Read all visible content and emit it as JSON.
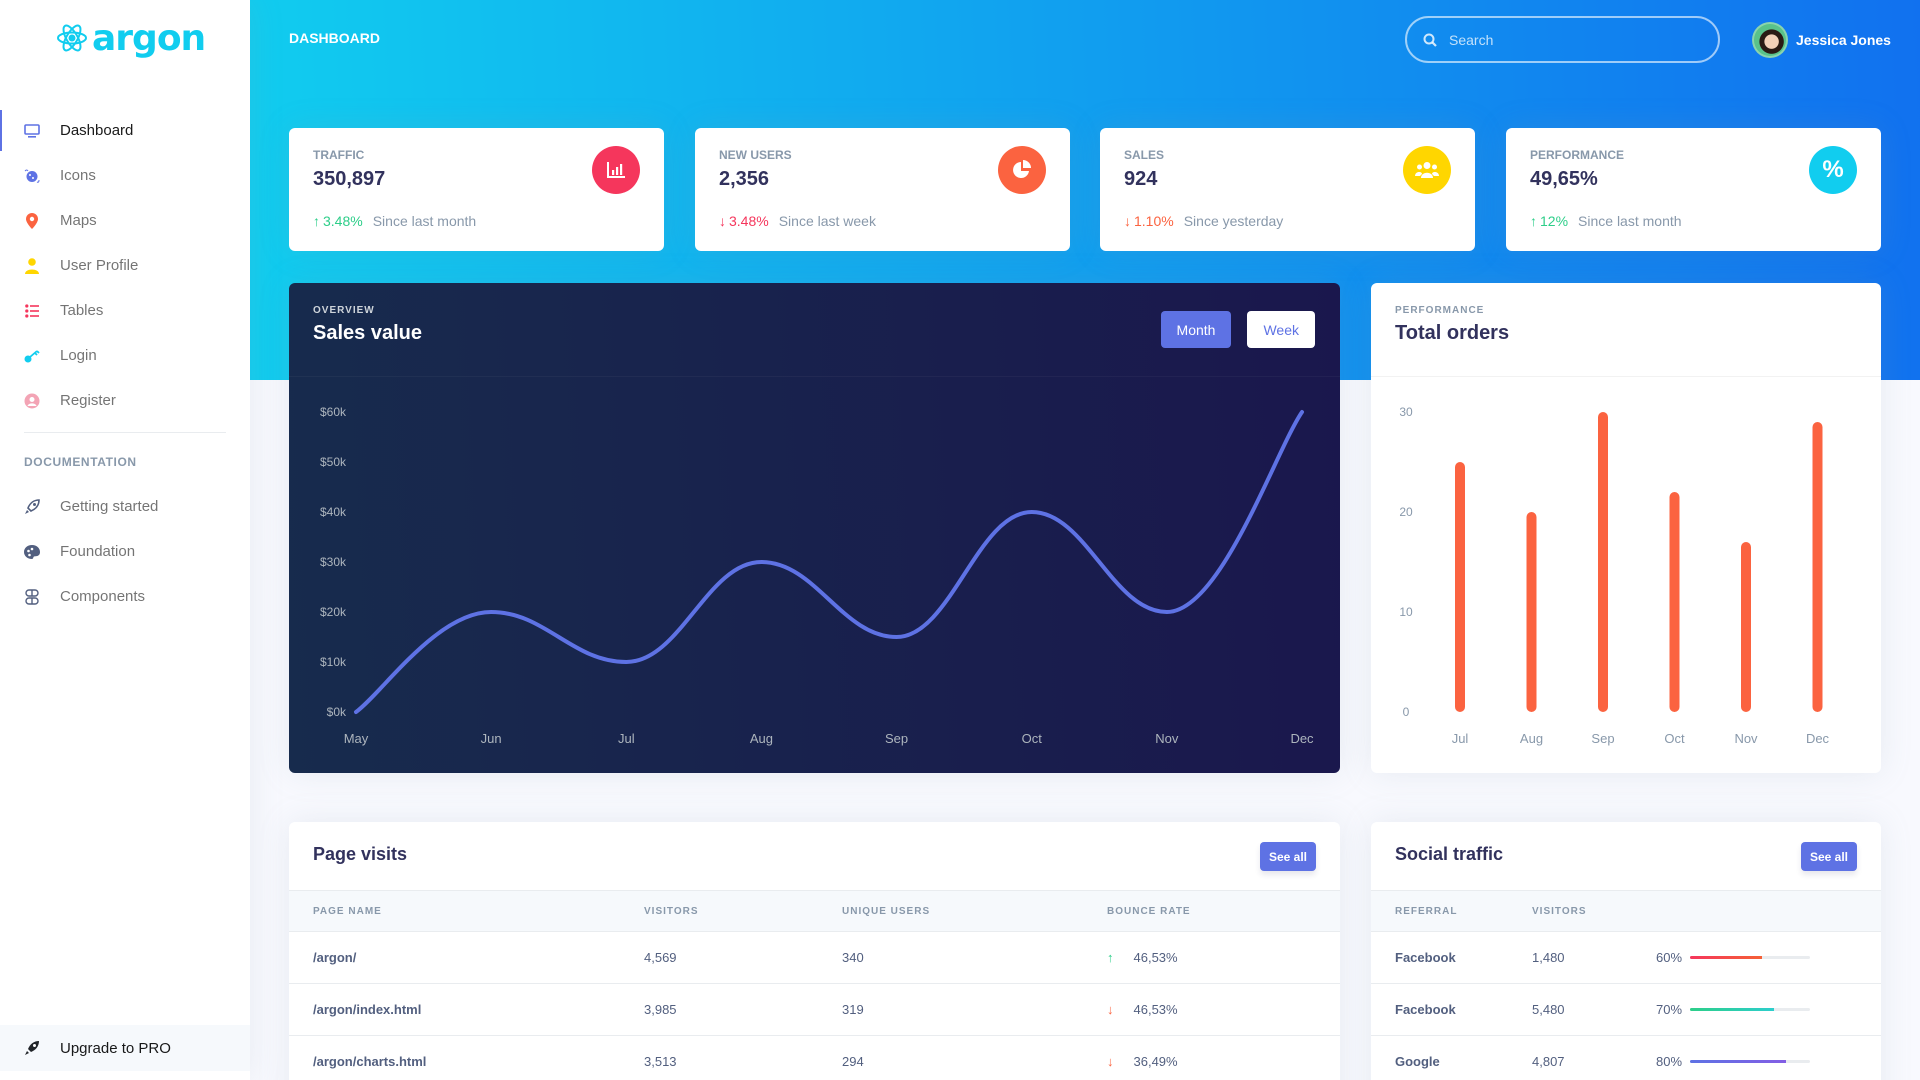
{
  "brand": {
    "name": "argon",
    "color": "#11cdef"
  },
  "sidebar": {
    "items": [
      {
        "label": "Dashboard",
        "icon": "tv-icon",
        "color": "#5e72e4",
        "active": true
      },
      {
        "label": "Icons",
        "icon": "planet-icon",
        "color": "#5e72e4"
      },
      {
        "label": "Maps",
        "icon": "pin-icon",
        "color": "#fb6340"
      },
      {
        "label": "User Profile",
        "icon": "user-icon",
        "color": "#ffd600"
      },
      {
        "label": "Tables",
        "icon": "list-icon",
        "color": "#f5365c"
      },
      {
        "label": "Login",
        "icon": "key-icon",
        "color": "#11cdef"
      },
      {
        "label": "Register",
        "icon": "circle-user-icon",
        "color": "#f3a4b5"
      }
    ],
    "doc_heading": "Documentation",
    "doc_items": [
      {
        "label": "Getting started",
        "icon": "rocket-icon"
      },
      {
        "label": "Foundation",
        "icon": "palette-icon"
      },
      {
        "label": "Components",
        "icon": "components-icon"
      }
    ],
    "upgrade_label": "Upgrade to PRO"
  },
  "header": {
    "title": "Dashboard",
    "search_placeholder": "Search",
    "user_name": "Jessica Jones"
  },
  "stats": [
    {
      "label": "Traffic",
      "value": "350,897",
      "change": "3.48%",
      "direction": "up",
      "since": "Since last month",
      "icon": "chart-bar-icon",
      "icon_bg": "#f5365c",
      "change_color": "#2dce89"
    },
    {
      "label": "New users",
      "value": "2,356",
      "change": "3.48%",
      "direction": "down",
      "since": "Since last week",
      "icon": "chart-pie-icon",
      "icon_bg": "#fb6340",
      "change_color": "#f5365c"
    },
    {
      "label": "Sales",
      "value": "924",
      "change": "1.10%",
      "direction": "down",
      "since": "Since yesterday",
      "icon": "users-icon",
      "icon_bg": "#ffd600",
      "change_color": "#fb6340"
    },
    {
      "label": "Performance",
      "value": "49,65%",
      "change": "12%",
      "direction": "up",
      "since": "Since last month",
      "icon": "percent-icon",
      "icon_bg": "#11cdef",
      "change_color": "#2dce89"
    }
  ],
  "sales_card": {
    "overline": "Overview",
    "title": "Sales value",
    "btn_month": "Month",
    "btn_week": "Week"
  },
  "orders_card": {
    "overline": "Performance",
    "title": "Total orders"
  },
  "chart_data": [
    {
      "type": "line",
      "title": "Sales value",
      "categories": [
        "May",
        "Jun",
        "Jul",
        "Aug",
        "Sep",
        "Oct",
        "Nov",
        "Dec"
      ],
      "values": [
        0,
        20,
        10,
        30,
        15,
        40,
        20,
        60
      ],
      "y_ticks": [
        "$0k",
        "$10k",
        "$20k",
        "$30k",
        "$40k",
        "$50k",
        "$60k"
      ],
      "ylim": [
        0,
        60
      ],
      "color": "#5e72e4",
      "grid": false
    },
    {
      "type": "bar",
      "title": "Total orders",
      "categories": [
        "Jul",
        "Aug",
        "Sep",
        "Oct",
        "Nov",
        "Dec"
      ],
      "values": [
        25,
        20,
        30,
        22,
        17,
        29
      ],
      "y_ticks": [
        "0",
        "10",
        "20",
        "30"
      ],
      "ylim": [
        0,
        30
      ],
      "color": "#fb6340",
      "grid": false
    }
  ],
  "page_visits": {
    "title": "Page visits",
    "see_all": "See all",
    "columns": [
      "Page name",
      "Visitors",
      "Unique users",
      "Bounce rate"
    ],
    "rows": [
      {
        "page": "/argon/",
        "visitors": "4,569",
        "unique": "340",
        "bounce": "46,53%",
        "dir": "up"
      },
      {
        "page": "/argon/index.html",
        "visitors": "3,985",
        "unique": "319",
        "bounce": "46,53%",
        "dir": "down"
      },
      {
        "page": "/argon/charts.html",
        "visitors": "3,513",
        "unique": "294",
        "bounce": "36,49%",
        "dir": "down"
      }
    ]
  },
  "social_traffic": {
    "title": "Social traffic",
    "see_all": "See all",
    "columns": [
      "Referral",
      "Visitors",
      ""
    ],
    "rows": [
      {
        "referral": "Facebook",
        "visitors": "1,480",
        "pct": "60%",
        "value": 60,
        "color": "linear-gradient(87deg,#f5365c,#f56036)"
      },
      {
        "referral": "Facebook",
        "visitors": "5,480",
        "pct": "70%",
        "value": 70,
        "color": "linear-gradient(87deg,#2dce89,#2dcecc)"
      },
      {
        "referral": "Google",
        "visitors": "4,807",
        "pct": "80%",
        "value": 80,
        "color": "linear-gradient(87deg,#5e72e4,#825ee4)"
      }
    ]
  }
}
